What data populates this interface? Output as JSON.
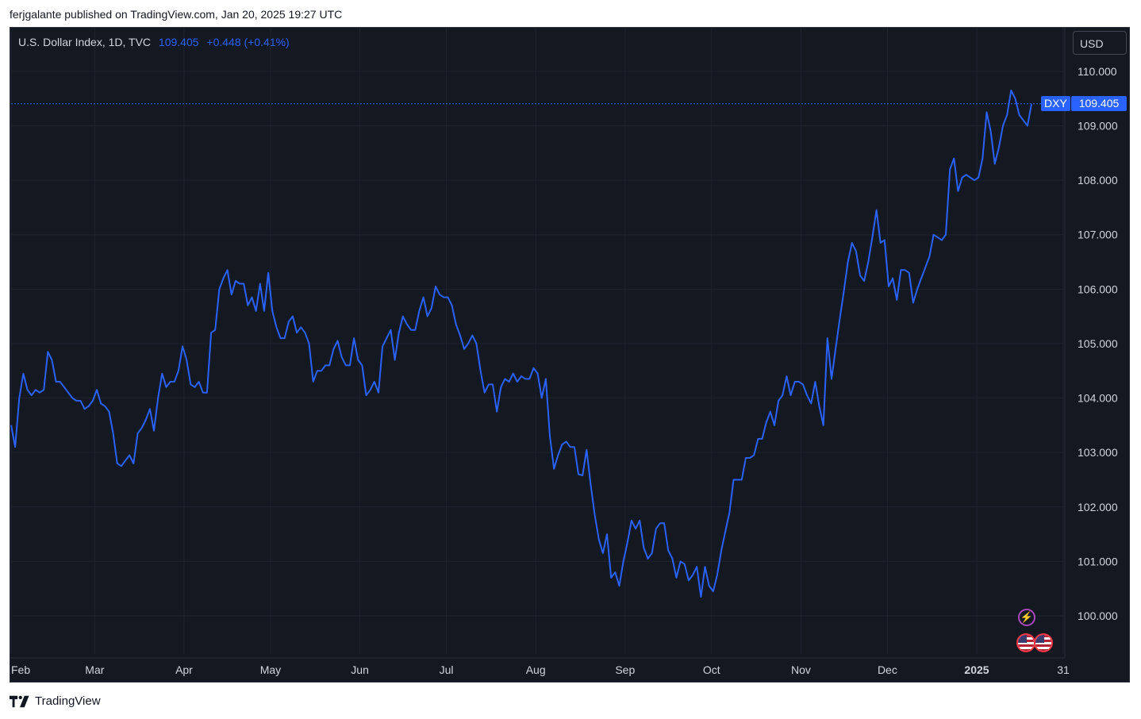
{
  "header": {
    "published": "ferjgalante published on TradingView.com, Jan 20, 2025 19:27 UTC"
  },
  "legend": {
    "symbol": "U.S. Dollar Index, 1D, TVC",
    "last": "109.405",
    "change": "+0.448 (+0.41%)"
  },
  "currency": "USD",
  "price_tag": {
    "series": "DXY",
    "value": "109.405"
  },
  "footer": {
    "brand": "TradingView"
  },
  "colors": {
    "line": "#2962ff",
    "background": "#141821",
    "grid": "#1f232e",
    "axis_text": "#d1d4dc"
  },
  "icons": {
    "events": "lightning-icon",
    "country": "us-flag-icon"
  },
  "chart_data": {
    "type": "line",
    "ylim": [
      99.3,
      110.8
    ],
    "y_ticks": [
      "100.000",
      "101.000",
      "102.000",
      "103.000",
      "104.000",
      "105.000",
      "106.000",
      "107.000",
      "108.000",
      "109.000",
      "110.000"
    ],
    "x_ticks": [
      {
        "label": "Feb",
        "day": 0
      },
      {
        "label": "Mar",
        "day": 29
      },
      {
        "label": "Apr",
        "day": 60
      },
      {
        "label": "May",
        "day": 90
      },
      {
        "label": "Jun",
        "day": 121
      },
      {
        "label": "Jul",
        "day": 151
      },
      {
        "label": "Aug",
        "day": 182
      },
      {
        "label": "Sep",
        "day": 213
      },
      {
        "label": "Oct",
        "day": 243
      },
      {
        "label": "Nov",
        "day": 274
      },
      {
        "label": "Dec",
        "day": 304
      },
      {
        "label": "2025",
        "day": 335,
        "bold": true
      },
      {
        "label": "31",
        "day": 365
      }
    ],
    "series": [
      {
        "values": [
          [
            0,
            103.5
          ],
          [
            1,
            103.1
          ],
          [
            2,
            104.0
          ],
          [
            3,
            104.45
          ],
          [
            4,
            104.15
          ],
          [
            5,
            104.05
          ],
          [
            6,
            104.15
          ],
          [
            7,
            104.1
          ],
          [
            8,
            104.15
          ],
          [
            9,
            104.85
          ],
          [
            10,
            104.7
          ],
          [
            11,
            104.3
          ],
          [
            12,
            104.3
          ],
          [
            13,
            104.2
          ],
          [
            14,
            104.1
          ],
          [
            15,
            104.0
          ],
          [
            16,
            103.95
          ],
          [
            17,
            103.95
          ],
          [
            18,
            103.8
          ],
          [
            19,
            103.85
          ],
          [
            20,
            103.95
          ],
          [
            21,
            104.15
          ],
          [
            22,
            103.9
          ],
          [
            23,
            103.85
          ],
          [
            24,
            103.75
          ],
          [
            25,
            103.35
          ],
          [
            26,
            102.8
          ],
          [
            27,
            102.75
          ],
          [
            28,
            102.85
          ],
          [
            29,
            102.95
          ],
          [
            30,
            102.8
          ],
          [
            31,
            103.35
          ],
          [
            32,
            103.45
          ],
          [
            33,
            103.6
          ],
          [
            34,
            103.8
          ],
          [
            35,
            103.4
          ],
          [
            36,
            104.0
          ],
          [
            37,
            104.45
          ],
          [
            38,
            104.2
          ],
          [
            39,
            104.3
          ],
          [
            40,
            104.3
          ],
          [
            41,
            104.5
          ],
          [
            42,
            104.95
          ],
          [
            43,
            104.7
          ],
          [
            44,
            104.25
          ],
          [
            45,
            104.2
          ],
          [
            46,
            104.3
          ],
          [
            47,
            104.1
          ],
          [
            48,
            104.1
          ],
          [
            49,
            105.2
          ],
          [
            50,
            105.25
          ],
          [
            51,
            106.0
          ],
          [
            52,
            106.2
          ],
          [
            53,
            106.35
          ],
          [
            54,
            105.9
          ],
          [
            55,
            106.15
          ],
          [
            56,
            106.1
          ],
          [
            57,
            106.1
          ],
          [
            58,
            105.7
          ],
          [
            59,
            105.85
          ],
          [
            60,
            105.6
          ],
          [
            61,
            106.1
          ],
          [
            62,
            105.6
          ],
          [
            63,
            106.3
          ],
          [
            64,
            105.6
          ],
          [
            65,
            105.3
          ],
          [
            66,
            105.1
          ],
          [
            67,
            105.1
          ],
          [
            68,
            105.4
          ],
          [
            69,
            105.5
          ],
          [
            70,
            105.2
          ],
          [
            71,
            105.3
          ],
          [
            72,
            105.2
          ],
          [
            73,
            105.0
          ],
          [
            74,
            104.3
          ],
          [
            75,
            104.5
          ],
          [
            76,
            104.5
          ],
          [
            77,
            104.6
          ],
          [
            78,
            104.6
          ],
          [
            79,
            104.9
          ],
          [
            80,
            105.05
          ],
          [
            81,
            104.75
          ],
          [
            82,
            104.6
          ],
          [
            83,
            104.6
          ],
          [
            84,
            105.1
          ],
          [
            85,
            104.7
          ],
          [
            86,
            104.6
          ],
          [
            87,
            104.05
          ],
          [
            88,
            104.15
          ],
          [
            89,
            104.3
          ],
          [
            90,
            104.1
          ],
          [
            91,
            104.95
          ],
          [
            92,
            105.1
          ],
          [
            93,
            105.25
          ],
          [
            94,
            104.7
          ],
          [
            95,
            105.2
          ],
          [
            96,
            105.5
          ],
          [
            97,
            105.35
          ],
          [
            98,
            105.25
          ],
          [
            99,
            105.25
          ],
          [
            100,
            105.6
          ],
          [
            101,
            105.85
          ],
          [
            102,
            105.5
          ],
          [
            103,
            105.65
          ],
          [
            104,
            106.05
          ],
          [
            105,
            105.9
          ],
          [
            106,
            105.85
          ],
          [
            107,
            105.85
          ],
          [
            108,
            105.7
          ],
          [
            109,
            105.35
          ],
          [
            110,
            105.15
          ],
          [
            111,
            104.9
          ],
          [
            112,
            105.0
          ],
          [
            113,
            105.15
          ],
          [
            114,
            105.0
          ],
          [
            115,
            104.5
          ],
          [
            116,
            104.1
          ],
          [
            117,
            104.25
          ],
          [
            118,
            104.25
          ],
          [
            119,
            103.75
          ],
          [
            120,
            104.2
          ],
          [
            121,
            104.35
          ],
          [
            122,
            104.3
          ],
          [
            123,
            104.45
          ],
          [
            124,
            104.3
          ],
          [
            125,
            104.4
          ],
          [
            126,
            104.35
          ],
          [
            127,
            104.35
          ],
          [
            128,
            104.55
          ],
          [
            129,
            104.45
          ],
          [
            130,
            104.0
          ],
          [
            131,
            104.35
          ],
          [
            132,
            103.3
          ],
          [
            133,
            102.7
          ],
          [
            134,
            102.95
          ],
          [
            135,
            103.15
          ],
          [
            136,
            103.2
          ],
          [
            137,
            103.1
          ],
          [
            138,
            103.1
          ],
          [
            139,
            102.6
          ],
          [
            140,
            102.58
          ],
          [
            141,
            103.05
          ],
          [
            142,
            102.4
          ],
          [
            143,
            101.85
          ],
          [
            144,
            101.4
          ],
          [
            145,
            101.15
          ],
          [
            146,
            101.5
          ],
          [
            147,
            100.7
          ],
          [
            148,
            100.8
          ],
          [
            149,
            100.55
          ],
          [
            150,
            101.0
          ],
          [
            151,
            101.35
          ],
          [
            152,
            101.75
          ],
          [
            153,
            101.6
          ],
          [
            154,
            101.75
          ],
          [
            155,
            101.25
          ],
          [
            156,
            101.05
          ],
          [
            157,
            101.15
          ],
          [
            158,
            101.6
          ],
          [
            159,
            101.7
          ],
          [
            160,
            101.7
          ],
          [
            161,
            101.2
          ],
          [
            162,
            101.05
          ],
          [
            163,
            100.7
          ],
          [
            164,
            101.0
          ],
          [
            165,
            100.95
          ],
          [
            166,
            100.65
          ],
          [
            167,
            100.75
          ],
          [
            168,
            100.9
          ],
          [
            169,
            100.35
          ],
          [
            170,
            100.9
          ],
          [
            171,
            100.55
          ],
          [
            172,
            100.45
          ],
          [
            173,
            100.75
          ],
          [
            174,
            101.2
          ],
          [
            175,
            101.55
          ],
          [
            176,
            101.9
          ],
          [
            177,
            102.5
          ],
          [
            178,
            102.5
          ],
          [
            179,
            102.5
          ],
          [
            180,
            102.9
          ],
          [
            181,
            102.9
          ],
          [
            182,
            102.95
          ],
          [
            183,
            103.25
          ],
          [
            184,
            103.25
          ],
          [
            185,
            103.55
          ],
          [
            186,
            103.75
          ],
          [
            187,
            103.5
          ],
          [
            188,
            103.95
          ],
          [
            189,
            104.05
          ],
          [
            190,
            104.4
          ],
          [
            191,
            104.05
          ],
          [
            192,
            104.3
          ],
          [
            193,
            104.3
          ],
          [
            194,
            104.25
          ],
          [
            195,
            104.05
          ],
          [
            196,
            103.9
          ],
          [
            197,
            104.3
          ],
          [
            198,
            103.85
          ],
          [
            199,
            103.5
          ],
          [
            200,
            105.1
          ],
          [
            201,
            104.35
          ],
          [
            202,
            104.9
          ],
          [
            203,
            105.45
          ],
          [
            204,
            105.95
          ],
          [
            205,
            106.5
          ],
          [
            206,
            106.85
          ],
          [
            207,
            106.7
          ],
          [
            208,
            106.25
          ],
          [
            209,
            106.15
          ],
          [
            210,
            106.5
          ],
          [
            211,
            106.95
          ],
          [
            212,
            107.45
          ],
          [
            213,
            106.85
          ],
          [
            214,
            106.9
          ],
          [
            215,
            106.05
          ],
          [
            216,
            106.2
          ],
          [
            217,
            105.8
          ],
          [
            218,
            106.35
          ],
          [
            219,
            106.35
          ],
          [
            220,
            106.3
          ],
          [
            221,
            105.75
          ],
          [
            222,
            106.0
          ],
          [
            223,
            106.2
          ],
          [
            224,
            106.4
          ],
          [
            225,
            106.6
          ],
          [
            226,
            107.0
          ],
          [
            227,
            106.95
          ],
          [
            228,
            106.9
          ],
          [
            229,
            107.0
          ],
          [
            230,
            108.2
          ],
          [
            231,
            108.4
          ],
          [
            232,
            107.8
          ],
          [
            233,
            108.05
          ],
          [
            234,
            108.1
          ],
          [
            235,
            108.05
          ],
          [
            236,
            108.0
          ],
          [
            237,
            108.05
          ],
          [
            238,
            108.4
          ],
          [
            239,
            109.25
          ],
          [
            240,
            108.9
          ],
          [
            241,
            108.3
          ],
          [
            242,
            108.6
          ],
          [
            243,
            109.0
          ],
          [
            244,
            109.2
          ],
          [
            245,
            109.65
          ],
          [
            246,
            109.5
          ],
          [
            247,
            109.2
          ],
          [
            248,
            109.1
          ],
          [
            249,
            109.0
          ],
          [
            250,
            109.4
          ]
        ]
      }
    ]
  }
}
